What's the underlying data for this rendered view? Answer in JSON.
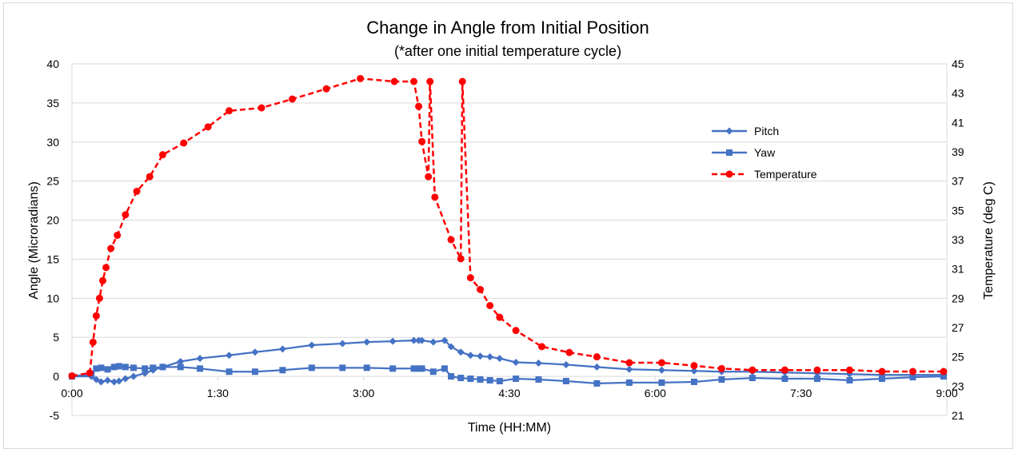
{
  "chart_data": {
    "type": "line",
    "title": "Change in Angle from Initial Position",
    "subtitle": "(*after one initial temperature cycle)",
    "xlabel": "Time (HH:MM)",
    "ylabel": "Angle (Microradians)",
    "y2label": "Temperature (deg C)",
    "xlim": [
      0,
      540
    ],
    "ylim": [
      -5,
      40
    ],
    "y2lim": [
      21,
      45
    ],
    "x_tick_labels": [
      "0:00",
      "1:30",
      "3:00",
      "4:30",
      "6:00",
      "7:30",
      "9:00"
    ],
    "y_tick_labels": [
      "-5",
      "0",
      "5",
      "10",
      "15",
      "20",
      "25",
      "30",
      "35",
      "40"
    ],
    "y2_tick_labels": [
      "21",
      "23",
      "25",
      "27",
      "29",
      "31",
      "33",
      "35",
      "37",
      "39",
      "41",
      "43",
      "45"
    ],
    "grid": "horizontal",
    "legend_position": "top-right",
    "colors": {
      "pitch": "#4472C4",
      "yaw": "#4472C4",
      "temperature": "#FF0000",
      "grid": "#d9d9d9"
    },
    "series": [
      {
        "name": "Pitch",
        "axis": "left",
        "marker": "diamond",
        "line": "solid",
        "x": [
          0,
          12,
          15,
          18,
          22,
          26,
          29,
          33,
          38,
          45,
          50,
          56,
          67,
          79,
          97,
          113,
          130,
          148,
          167,
          182,
          198,
          214,
          230,
          211,
          216,
          223,
          234,
          240,
          246,
          252,
          258,
          264,
          274,
          288,
          305,
          324,
          344,
          364,
          384,
          401,
          420,
          440,
          460,
          480,
          500,
          519,
          538
        ],
        "y": [
          0,
          0,
          -0.4,
          -0.7,
          -0.5,
          -0.7,
          -0.6,
          -0.3,
          0,
          0.4,
          0.8,
          1.2,
          1.9,
          2.3,
          2.7,
          3.1,
          3.5,
          4.0,
          4.2,
          4.4,
          4.5,
          4.6,
          4.6,
          4.6,
          4.6,
          4.4,
          3.8,
          3.1,
          2.7,
          2.6,
          2.5,
          2.3,
          1.8,
          1.7,
          1.5,
          1.2,
          0.9,
          0.8,
          0.7,
          0.6,
          0.6,
          0.5,
          0.4,
          0.3,
          0.2,
          0.2,
          0.2
        ]
      },
      {
        "name": "Yaw",
        "axis": "left",
        "marker": "square",
        "line": "solid",
        "x": [
          0,
          12,
          15,
          18,
          22,
          26,
          29,
          33,
          38,
          45,
          50,
          56,
          67,
          79,
          97,
          113,
          130,
          148,
          167,
          182,
          198,
          214,
          230,
          211,
          216,
          223,
          234,
          240,
          246,
          252,
          258,
          264,
          274,
          288,
          305,
          324,
          344,
          364,
          384,
          401,
          420,
          440,
          460,
          480,
          500,
          519,
          538
        ],
        "y": [
          0,
          0.3,
          1.0,
          1.1,
          0.9,
          1.2,
          1.3,
          1.2,
          1.1,
          1.0,
          1.1,
          1.2,
          1.2,
          1.0,
          0.6,
          0.6,
          0.8,
          1.1,
          1.1,
          1.1,
          1.0,
          1.0,
          1.0,
          1.0,
          1.0,
          0.6,
          0,
          -0.2,
          -0.3,
          -0.4,
          -0.5,
          -0.6,
          -0.3,
          -0.4,
          -0.6,
          -0.9,
          -0.8,
          -0.8,
          -0.7,
          -0.4,
          -0.2,
          -0.3,
          -0.3,
          -0.5,
          -0.3,
          -0.1,
          0
        ]
      },
      {
        "name": "Temperature",
        "axis": "right",
        "marker": "circle",
        "line": "dashed",
        "x": [
          0,
          11,
          13,
          15,
          17,
          19,
          21,
          24,
          28,
          33,
          40,
          48,
          56,
          69,
          84,
          97,
          117,
          136,
          157,
          178,
          199,
          221,
          241,
          211,
          214,
          216,
          220,
          224,
          234,
          240,
          246,
          252,
          258,
          264,
          274,
          290,
          307,
          324,
          344,
          364,
          384,
          401,
          420,
          440,
          460,
          480,
          500,
          519,
          538
        ],
        "y": [
          23.7,
          23.9,
          26.0,
          27.8,
          29.0,
          30.2,
          31.1,
          32.4,
          33.3,
          34.7,
          36.3,
          37.3,
          38.8,
          39.6,
          40.7,
          41.8,
          42.0,
          42.6,
          43.3,
          44.0,
          43.8,
          43.8,
          43.8,
          43.8,
          42.1,
          39.7,
          37.3,
          35.9,
          33.0,
          31.7,
          30.4,
          29.6,
          28.5,
          27.7,
          26.8,
          25.7,
          25.3,
          25.0,
          24.6,
          24.6,
          24.4,
          24.2,
          24.1,
          24.1,
          24.1,
          24.1,
          24.0,
          24.0,
          24.0
        ]
      }
    ]
  }
}
